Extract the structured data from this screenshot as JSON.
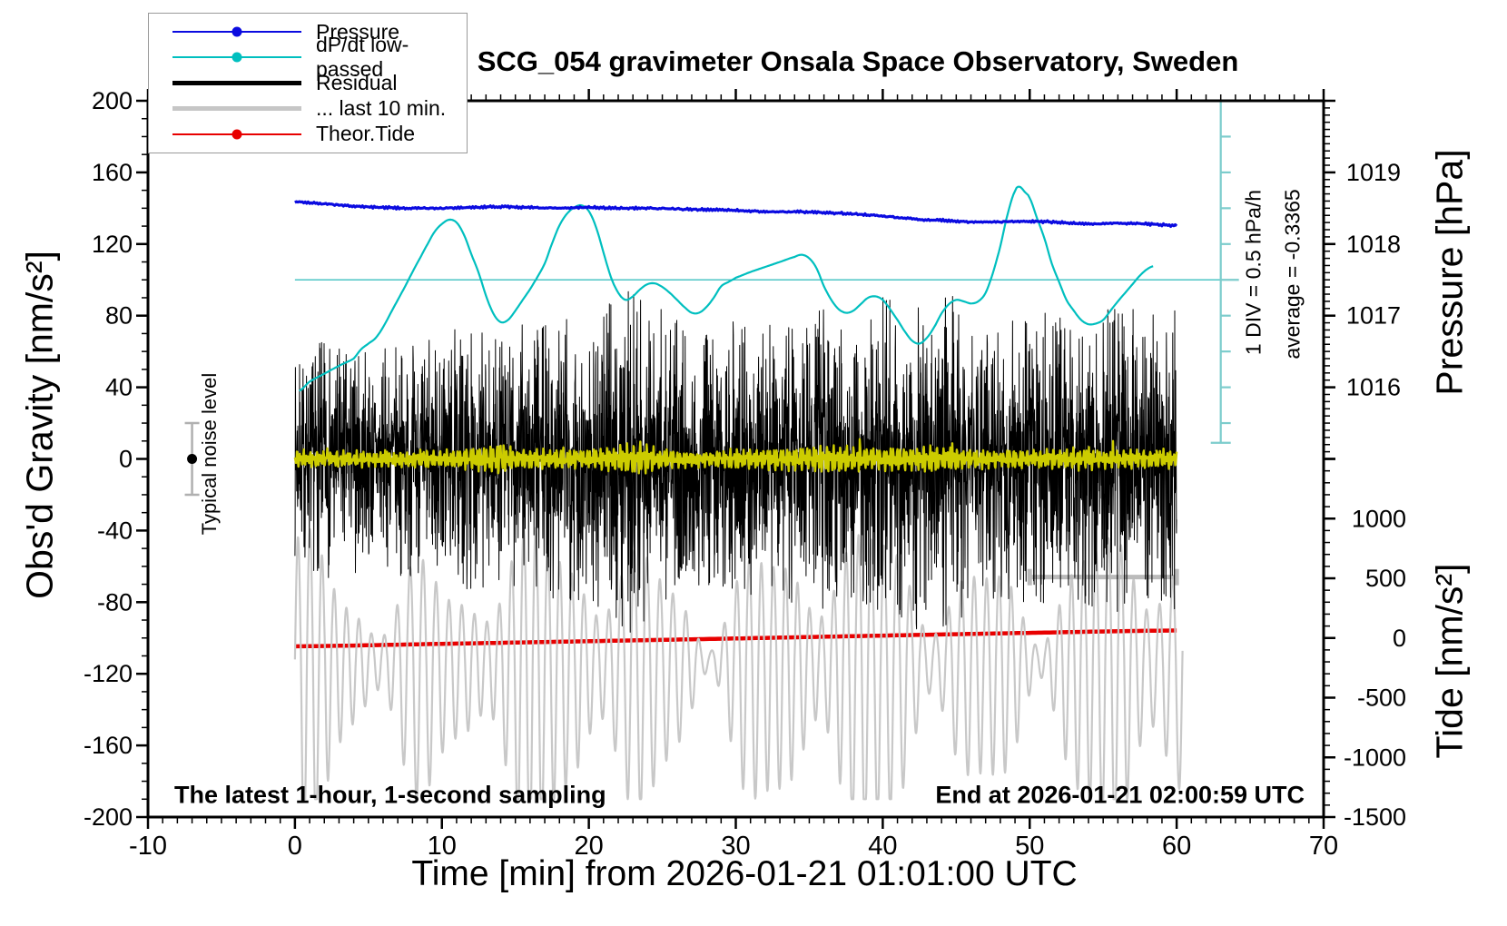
{
  "title": "SCG_054 gravimeter Onsala Space Observatory, Sweden",
  "background": "#ffffff",
  "legend": {
    "items": [
      {
        "label": "Pressure",
        "color": "#0b0be0",
        "line_width": 2,
        "dot": true
      },
      {
        "label": "dP/dt low-passed",
        "color": "#00bfbf",
        "line_width": 2,
        "dot": true
      },
      {
        "label": "Residual",
        "color": "#000000",
        "line_width": 4.5,
        "dot": false
      },
      {
        "label": "... last 10 min.",
        "color": "#c6c6c6",
        "line_width": 4.5,
        "dot": false
      },
      {
        "label": "Theor.Tide",
        "color": "#e80000",
        "line_width": 2,
        "dot": true
      }
    ]
  },
  "annotations": {
    "noise_label": "Typical noise level",
    "div_label": "1 DIV = 0.5 hPa/h",
    "average_label": "average = -0.3365",
    "sampling_label": "The latest 1-hour, 1-second sampling",
    "end_label": "End at 2026-01-21 02:00:59 UTC"
  },
  "chart_data": {
    "type": "line",
    "grid": false,
    "legend_position": "top-left",
    "x_axis": {
      "label": "Time [min] from 2026-01-21 01:01:00 UTC",
      "min": -10,
      "max": 70,
      "unit": "min",
      "labeled_ticks": [
        -10,
        0,
        10,
        20,
        30,
        40,
        50,
        60,
        70
      ],
      "minor_tick_step": 1
    },
    "y_left_axis": {
      "label": "Obs'd Gravity [nm/s²]",
      "min": -200,
      "max": 200,
      "unit": "nm/s2",
      "labeled_ticks": [
        200,
        160,
        120,
        80,
        40,
        0,
        -40,
        -80,
        -120,
        -160,
        -200
      ],
      "minor_tick_step": 10
    },
    "y_right_pressure_axis": {
      "label": "Pressure [hPa]",
      "min": 1015,
      "max": 1020,
      "unit": "hPa",
      "labeled_ticks": [
        1019,
        1018,
        1017,
        1016
      ],
      "major_tick_step": 1,
      "minor_tick_step": 0.1
    },
    "y_right_tide_axis": {
      "label": "Tide [nm/s²]",
      "min": -1500,
      "max": 1500,
      "unit": "nm/s2",
      "labeled_ticks": [
        1000,
        500,
        0,
        -500,
        -1000,
        -1500
      ],
      "major_tick_step": 500,
      "minor_tick_step": 100
    },
    "series": [
      {
        "name": "Pressure",
        "color": "#0b0be0",
        "width": 3.2,
        "axis": "pressure",
        "points": [
          [
            0,
            1018.59
          ],
          [
            2,
            1018.56
          ],
          [
            4,
            1018.53
          ],
          [
            6,
            1018.51
          ],
          [
            8,
            1018.5
          ],
          [
            10,
            1018.5
          ],
          [
            12,
            1018.51
          ],
          [
            14,
            1018.52
          ],
          [
            16,
            1018.51
          ],
          [
            18,
            1018.5
          ],
          [
            20,
            1018.51
          ],
          [
            22,
            1018.5
          ],
          [
            24,
            1018.5
          ],
          [
            26,
            1018.49
          ],
          [
            28,
            1018.48
          ],
          [
            30,
            1018.47
          ],
          [
            32,
            1018.45
          ],
          [
            34,
            1018.45
          ],
          [
            36,
            1018.44
          ],
          [
            38,
            1018.42
          ],
          [
            40,
            1018.39
          ],
          [
            42,
            1018.35
          ],
          [
            44,
            1018.33
          ],
          [
            46,
            1018.31
          ],
          [
            48,
            1018.31
          ],
          [
            50,
            1018.32
          ],
          [
            52,
            1018.3
          ],
          [
            54,
            1018.28
          ],
          [
            56,
            1018.29
          ],
          [
            58,
            1018.28
          ],
          [
            60,
            1018.26
          ]
        ]
      },
      {
        "name": "dP/dt low-passed",
        "color": "#00bfbf",
        "width": 2.2,
        "axis": "dpdt",
        "unit": "hPa/h",
        "div_value_hpa_per_h": 0.5,
        "average_hpa_per_h": -0.3365,
        "points": [
          [
            0.3,
            -1.55
          ],
          [
            1,
            -1.42
          ],
          [
            2,
            -1.31
          ],
          [
            3,
            -1.2
          ],
          [
            4,
            -1.1
          ],
          [
            4.5,
            -0.97
          ],
          [
            5,
            -0.89
          ],
          [
            5.5,
            -0.81
          ],
          [
            6,
            -0.66
          ],
          [
            6.5,
            -0.47
          ],
          [
            7,
            -0.28
          ],
          [
            7.5,
            -0.09
          ],
          [
            8,
            0.11
          ],
          [
            8.5,
            0.3
          ],
          [
            9,
            0.49
          ],
          [
            9.5,
            0.67
          ],
          [
            10,
            0.78
          ],
          [
            10.5,
            0.84
          ],
          [
            11,
            0.8
          ],
          [
            11.5,
            0.63
          ],
          [
            12,
            0.36
          ],
          [
            12.5,
            0.1
          ],
          [
            13,
            -0.22
          ],
          [
            13.5,
            -0.47
          ],
          [
            14,
            -0.59
          ],
          [
            14.5,
            -0.56
          ],
          [
            15,
            -0.43
          ],
          [
            15.5,
            -0.28
          ],
          [
            16,
            -0.13
          ],
          [
            16.5,
            0.04
          ],
          [
            17,
            0.23
          ],
          [
            17.5,
            0.51
          ],
          [
            18,
            0.76
          ],
          [
            18.5,
            0.92
          ],
          [
            19,
            1.01
          ],
          [
            19.5,
            1.04
          ],
          [
            20,
            0.96
          ],
          [
            20.5,
            0.73
          ],
          [
            21,
            0.38
          ],
          [
            21.5,
            0.04
          ],
          [
            22,
            -0.18
          ],
          [
            22.5,
            -0.28
          ],
          [
            23,
            -0.23
          ],
          [
            23.5,
            -0.13
          ],
          [
            24,
            -0.06
          ],
          [
            24.5,
            -0.05
          ],
          [
            25,
            -0.1
          ],
          [
            25.5,
            -0.18
          ],
          [
            26,
            -0.28
          ],
          [
            26.5,
            -0.38
          ],
          [
            27,
            -0.46
          ],
          [
            27.5,
            -0.46
          ],
          [
            28,
            -0.38
          ],
          [
            28.5,
            -0.25
          ],
          [
            29,
            -0.09
          ],
          [
            29.5,
            -0.03
          ],
          [
            30,
            0.03
          ],
          [
            31,
            0.11
          ],
          [
            32,
            0.18
          ],
          [
            33,
            0.25
          ],
          [
            34,
            0.32
          ],
          [
            34.5,
            0.35
          ],
          [
            35,
            0.3
          ],
          [
            35.5,
            0.16
          ],
          [
            36,
            -0.09
          ],
          [
            36.5,
            -0.28
          ],
          [
            37,
            -0.41
          ],
          [
            37.5,
            -0.46
          ],
          [
            38,
            -0.43
          ],
          [
            38.5,
            -0.34
          ],
          [
            39,
            -0.25
          ],
          [
            39.5,
            -0.23
          ],
          [
            40,
            -0.28
          ],
          [
            40.5,
            -0.41
          ],
          [
            41,
            -0.56
          ],
          [
            41.5,
            -0.72
          ],
          [
            42,
            -0.85
          ],
          [
            42.5,
            -0.89
          ],
          [
            43,
            -0.81
          ],
          [
            43.5,
            -0.66
          ],
          [
            44,
            -0.47
          ],
          [
            44.5,
            -0.34
          ],
          [
            45,
            -0.28
          ],
          [
            45.5,
            -0.3
          ],
          [
            46,
            -0.33
          ],
          [
            46.5,
            -0.3
          ],
          [
            47,
            -0.18
          ],
          [
            47.5,
            0.1
          ],
          [
            48,
            0.47
          ],
          [
            48.5,
            0.92
          ],
          [
            49,
            1.24
          ],
          [
            49.3,
            1.3
          ],
          [
            49.7,
            1.22
          ],
          [
            50,
            1.14
          ],
          [
            50.5,
            0.86
          ],
          [
            51,
            0.58
          ],
          [
            51.5,
            0.23
          ],
          [
            52,
            -0.03
          ],
          [
            52.5,
            -0.28
          ],
          [
            53,
            -0.43
          ],
          [
            53.5,
            -0.56
          ],
          [
            54,
            -0.62
          ],
          [
            54.5,
            -0.61
          ],
          [
            55,
            -0.56
          ],
          [
            55.5,
            -0.43
          ],
          [
            56,
            -0.3
          ],
          [
            56.5,
            -0.18
          ],
          [
            57,
            -0.06
          ],
          [
            57.5,
            0.06
          ],
          [
            58,
            0.15
          ],
          [
            58.4,
            0.19
          ]
        ]
      },
      {
        "name": "Residual",
        "color": "#000000",
        "width": 1,
        "axis": "gravity",
        "stochastic": true,
        "sampling_per_min": 60,
        "seed": 7,
        "x_start": 0,
        "x_end": 60,
        "amplitude_envelope": [
          [
            0,
            34
          ],
          [
            2,
            40
          ],
          [
            4,
            38
          ],
          [
            6,
            36
          ],
          [
            8,
            40
          ],
          [
            10,
            42
          ],
          [
            12,
            44
          ],
          [
            14,
            40
          ],
          [
            16,
            46
          ],
          [
            18,
            50
          ],
          [
            20,
            50
          ],
          [
            22,
            54
          ],
          [
            23,
            58
          ],
          [
            24,
            52
          ],
          [
            26,
            46
          ],
          [
            28,
            42
          ],
          [
            30,
            46
          ],
          [
            32,
            44
          ],
          [
            34,
            48
          ],
          [
            36,
            50
          ],
          [
            38,
            46
          ],
          [
            40,
            54
          ],
          [
            41,
            58
          ],
          [
            43,
            56
          ],
          [
            44,
            58
          ],
          [
            46,
            50
          ],
          [
            48,
            46
          ],
          [
            50,
            48
          ],
          [
            52,
            50
          ],
          [
            54,
            48
          ],
          [
            56,
            52
          ],
          [
            58,
            48
          ],
          [
            60,
            50
          ]
        ]
      },
      {
        "name": "Residual low-passed (yellow)",
        "color": "#cccc00",
        "width": 2.4,
        "axis": "gravity",
        "stochastic": true,
        "seed": 11,
        "x_start": 0,
        "x_end": 60,
        "amplitude_envelope": [
          [
            0,
            5
          ],
          [
            5,
            4
          ],
          [
            10,
            4.5
          ],
          [
            13,
            7
          ],
          [
            14,
            9
          ],
          [
            15,
            5
          ],
          [
            18,
            6
          ],
          [
            20,
            5
          ],
          [
            22.5,
            8
          ],
          [
            23.5,
            9
          ],
          [
            25,
            5
          ],
          [
            28,
            4
          ],
          [
            30,
            5
          ],
          [
            33,
            6
          ],
          [
            35,
            7
          ],
          [
            36,
            8
          ],
          [
            38,
            7
          ],
          [
            40,
            6
          ],
          [
            43,
            7
          ],
          [
            45,
            6
          ],
          [
            48,
            5
          ],
          [
            50,
            5
          ],
          [
            53,
            6
          ],
          [
            55,
            5
          ],
          [
            58,
            5
          ],
          [
            60,
            5
          ]
        ]
      },
      {
        "name": "... last 10 min.",
        "color": "#c8c8c8",
        "width": 2.2,
        "axis": "gravity",
        "stochastic": true,
        "seed": 3,
        "x_start": 0,
        "x_end": 60.4,
        "center_gravity": -112,
        "period_min": 0.85,
        "min_gravity": -190,
        "max_gravity": -30
      },
      {
        "name": "Theor.Tide",
        "color": "#e80000",
        "width": 4.5,
        "axis": "tide",
        "points": [
          [
            0,
            -70
          ],
          [
            10,
            -49
          ],
          [
            20,
            -27
          ],
          [
            30,
            -4
          ],
          [
            40,
            20
          ],
          [
            50,
            43
          ],
          [
            60,
            63
          ]
        ]
      }
    ],
    "markers": {
      "noise_errorbar": {
        "x_min": -7,
        "gravity_center": 0,
        "gravity_half_range": 20,
        "bar_color": "#b0b0b0",
        "dot_color": "#000000"
      },
      "last10_bar": {
        "from_min": 50,
        "to_min": 60,
        "gravity": -66,
        "color": "#bbbbbb"
      },
      "dpdt_zero_line": {
        "gravity": 100,
        "from_min": 0,
        "to_min": 63,
        "color": "#4cc4c4"
      },
      "dpdt_scale_bar": {
        "x_min": 63,
        "top_gravity": 200,
        "bottom_gravity": 9,
        "tick_step_gravity": 20,
        "long_tick_gravity": 100,
        "color": "#7ccccc"
      }
    }
  }
}
